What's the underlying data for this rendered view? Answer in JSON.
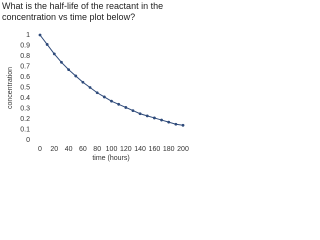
{
  "question": "What is the half-life of the reactant in the concentration vs time plot below?",
  "chart_data": {
    "type": "line",
    "xlabel": "time (hours)",
    "ylabel": "concentration",
    "x": [
      0,
      10,
      20,
      30,
      40,
      50,
      60,
      70,
      80,
      90,
      100,
      110,
      120,
      130,
      140,
      150,
      160,
      170,
      180,
      190,
      200
    ],
    "series": [
      {
        "color": "#2e4a7a",
        "values": [
          1,
          0.91,
          0.82,
          0.74,
          0.67,
          0.61,
          0.55,
          0.5,
          0.45,
          0.41,
          0.37,
          0.34,
          0.31,
          0.28,
          0.25,
          0.23,
          0.21,
          0.19,
          0.17,
          0.15,
          0.14
        ]
      }
    ],
    "xlim": [
      0,
      200
    ],
    "xticks": [
      0,
      20,
      40,
      60,
      80,
      100,
      120,
      140,
      160,
      180,
      200
    ],
    "ylim": [
      0,
      1
    ],
    "yticks": [
      0,
      0.1,
      0.2,
      0.3,
      0.4,
      0.5,
      0.6,
      0.7,
      0.8,
      0.9,
      1
    ],
    "grid": false
  }
}
